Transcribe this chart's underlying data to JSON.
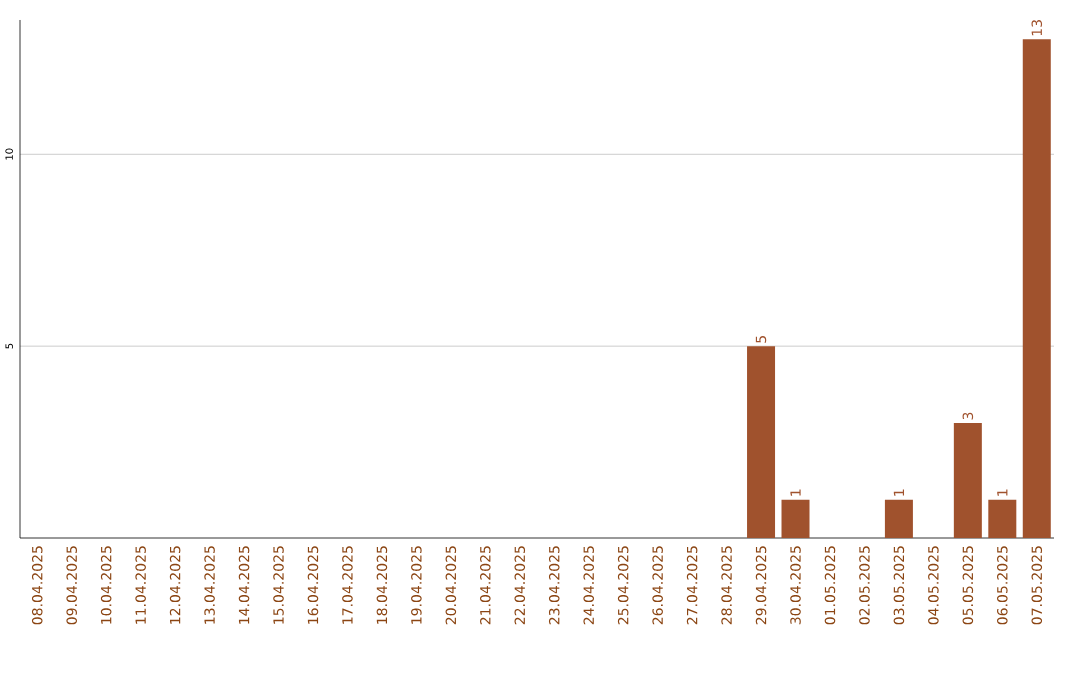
{
  "chart_data": {
    "type": "bar",
    "categories": [
      "08.04.2025",
      "09.04.2025",
      "10.04.2025",
      "11.04.2025",
      "12.04.2025",
      "13.04.2025",
      "14.04.2025",
      "15.04.2025",
      "16.04.2025",
      "17.04.2025",
      "18.04.2025",
      "19.04.2025",
      "20.04.2025",
      "21.04.2025",
      "22.04.2025",
      "23.04.2025",
      "24.04.2025",
      "25.04.2025",
      "26.04.2025",
      "27.04.2025",
      "28.04.2025",
      "29.04.2025",
      "30.04.2025",
      "01.05.2025",
      "02.05.2025",
      "03.05.2025",
      "04.05.2025",
      "05.05.2025",
      "06.05.2025",
      "07.05.2025"
    ],
    "values": [
      0,
      0,
      0,
      0,
      0,
      0,
      0,
      0,
      0,
      0,
      0,
      0,
      0,
      0,
      0,
      0,
      0,
      0,
      0,
      0,
      0,
      5,
      1,
      0,
      0,
      1,
      0,
      3,
      1,
      13
    ],
    "value_labels": [
      null,
      null,
      null,
      null,
      null,
      null,
      null,
      null,
      null,
      null,
      null,
      null,
      null,
      null,
      null,
      null,
      null,
      null,
      null,
      null,
      null,
      "5",
      "1",
      null,
      null,
      "1",
      null,
      "3",
      "1",
      "13"
    ],
    "color": "#a0522d",
    "ylim": [
      0,
      13.5
    ],
    "yticks": [
      5,
      10
    ],
    "grid": "y"
  }
}
